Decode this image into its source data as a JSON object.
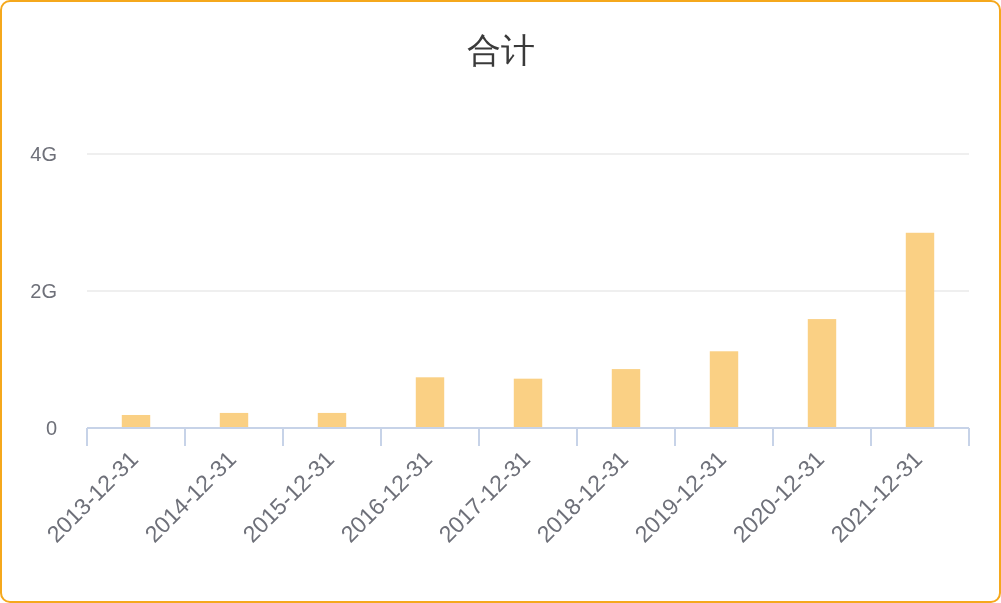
{
  "chart_data": {
    "type": "bar",
    "title": "合计",
    "categories": [
      "2013-12-31",
      "2014-12-31",
      "2015-12-31",
      "2016-12-31",
      "2017-12-31",
      "2018-12-31",
      "2019-12-31",
      "2020-12-31",
      "2021-12-31"
    ],
    "values": [
      0.19,
      0.22,
      0.22,
      0.74,
      0.72,
      0.86,
      1.12,
      1.59,
      2.85
    ],
    "color": "#fad084",
    "ylim": [
      0,
      4
    ],
    "yticks": [
      0,
      {
        "value": 2,
        "label": "2G"
      },
      {
        "value": 4,
        "label": "4G"
      }
    ],
    "grid": "y"
  }
}
